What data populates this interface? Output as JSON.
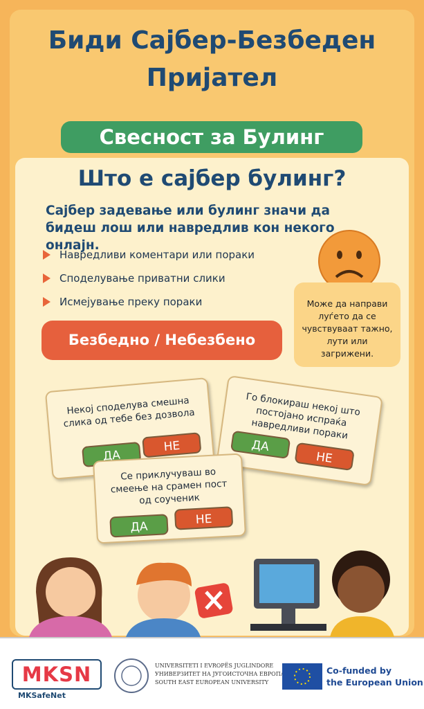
{
  "header": {
    "title_lines": [
      "Биди Сајбер-Безбеден",
      "Пријател"
    ],
    "badge": "Свесност за Булинг"
  },
  "section": {
    "heading": "Што е сајбер булинг?",
    "intro": "Сајбер задевање или булинг значи да бидеш лош или навредлив кон некого онлајн.",
    "bullets": [
      "Навредливи коментари или пораки",
      "Споделување приватни слики",
      "Исмејување преку пораки"
    ],
    "note": "Може да направи луѓето да се чувствуваат тажно, лути или загрижени.",
    "button": "Безбедно / Небезбено"
  },
  "cards": [
    {
      "question": "Некој споделува смешна слика од тебе без дозвола",
      "yes": "ДА",
      "no": "НЕ"
    },
    {
      "question": "Го блокираш некој што постојано испраќа навредливи пораки",
      "yes": "ДА",
      "no": "НЕ"
    },
    {
      "question": "Се приклучуваш во смеење на срамен пост од соученик",
      "yes": "ДА",
      "no": "НЕ"
    }
  ],
  "footer": {
    "logo": "MKSN",
    "logo_caption": "MKSafeNet",
    "university": [
      "UNIVERSITETI I EVROPËS JUGLINDORE",
      "УНИВЕРЗИТЕТ НА ЈУГОИСТОЧНА ЕВРОПА",
      "SOUTH EAST EUROPEAN UNIVERSITY"
    ],
    "eu": [
      "Co-funded by",
      "the European Union"
    ]
  }
}
